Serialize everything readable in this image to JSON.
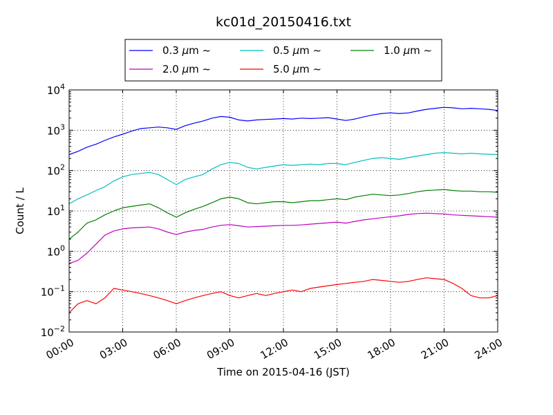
{
  "chart_data": {
    "type": "line",
    "title": "kc01d_20150416.txt",
    "xlabel": "Time on 2015-04-16 (JST)",
    "ylabel": "Count / L",
    "yscale": "log",
    "ylim": [
      0.01,
      10000
    ],
    "xlim": [
      "00:00",
      "24:00"
    ],
    "x_tick_labels": [
      "00:00",
      "03:00",
      "06:00",
      "09:00",
      "12:00",
      "15:00",
      "18:00",
      "21:00",
      "24:00"
    ],
    "y_tick_labels": [
      {
        "base": "10",
        "exp": "-2"
      },
      {
        "base": "10",
        "exp": "-1"
      },
      {
        "base": "10",
        "exp": "0"
      },
      {
        "base": "10",
        "exp": "1"
      },
      {
        "base": "10",
        "exp": "2"
      },
      {
        "base": "10",
        "exp": "3"
      },
      {
        "base": "10",
        "exp": "4"
      }
    ],
    "grid": true,
    "legend_position": "top",
    "x": [
      "00:00",
      "00:30",
      "01:00",
      "01:30",
      "02:00",
      "02:30",
      "03:00",
      "03:30",
      "04:00",
      "04:30",
      "05:00",
      "05:30",
      "06:00",
      "06:30",
      "07:00",
      "07:30",
      "08:00",
      "08:30",
      "09:00",
      "09:30",
      "10:00",
      "10:30",
      "11:00",
      "11:30",
      "12:00",
      "12:30",
      "13:00",
      "13:30",
      "14:00",
      "14:30",
      "15:00",
      "15:30",
      "16:00",
      "16:30",
      "17:00",
      "17:30",
      "18:00",
      "18:30",
      "19:00",
      "19:30",
      "20:00",
      "20:30",
      "21:00",
      "21:30",
      "22:00",
      "22:30",
      "23:00",
      "23:30",
      "24:00"
    ],
    "series": [
      {
        "name": "0.3 μm ~",
        "label_main": "0.3",
        "color": "#0000ff",
        "values": [
          250,
          300,
          380,
          450,
          560,
          680,
          800,
          950,
          1100,
          1150,
          1200,
          1150,
          1050,
          1300,
          1500,
          1700,
          2000,
          2200,
          2100,
          1800,
          1700,
          1800,
          1850,
          1900,
          1950,
          1900,
          2000,
          1950,
          2000,
          2050,
          1900,
          1750,
          1900,
          2150,
          2400,
          2600,
          2700,
          2600,
          2700,
          3000,
          3300,
          3500,
          3700,
          3600,
          3400,
          3500,
          3400,
          3300,
          3100
        ]
      },
      {
        "name": "0.5 μm ~",
        "label_main": "0.5",
        "color": "#00bfbf",
        "values": [
          15,
          20,
          25,
          32,
          40,
          55,
          70,
          80,
          85,
          90,
          80,
          60,
          45,
          60,
          70,
          80,
          110,
          140,
          160,
          150,
          120,
          110,
          120,
          130,
          140,
          135,
          140,
          145,
          140,
          150,
          150,
          140,
          160,
          180,
          200,
          210,
          200,
          190,
          210,
          230,
          250,
          270,
          280,
          270,
          260,
          270,
          260,
          255,
          250
        ]
      },
      {
        "name": "1.0 μm ~",
        "label_main": "1.0",
        "color": "#008000",
        "values": [
          2,
          3,
          5,
          6,
          8,
          10,
          12,
          13,
          14,
          15,
          12,
          9,
          7,
          9,
          11,
          13,
          16,
          20,
          22,
          20,
          16,
          15,
          16,
          17,
          17,
          16,
          17,
          18,
          18,
          19,
          20,
          19,
          22,
          24,
          26,
          25,
          24,
          25,
          27,
          30,
          32,
          33,
          34,
          32,
          31,
          31,
          30,
          30,
          29
        ]
      },
      {
        "name": "2.0 μm ~",
        "label_main": "2.0",
        "color": "#bf00bf",
        "values": [
          0.5,
          0.6,
          0.9,
          1.5,
          2.5,
          3.2,
          3.6,
          3.8,
          3.9,
          4.0,
          3.6,
          3.0,
          2.6,
          3.0,
          3.3,
          3.5,
          4.0,
          4.4,
          4.6,
          4.3,
          4.0,
          4.1,
          4.2,
          4.3,
          4.4,
          4.4,
          4.5,
          4.7,
          4.9,
          5.1,
          5.3,
          5.0,
          5.5,
          6.0,
          6.4,
          6.8,
          7.2,
          7.6,
          8.2,
          8.6,
          8.8,
          8.6,
          8.4,
          8.0,
          7.8,
          7.6,
          7.4,
          7.2,
          7.0
        ]
      },
      {
        "name": "5.0 μm ~",
        "label_main": "5.0",
        "color": "#ff0000",
        "values": [
          0.03,
          0.05,
          0.06,
          0.05,
          0.07,
          0.12,
          0.11,
          0.1,
          0.09,
          0.08,
          0.07,
          0.06,
          0.05,
          0.06,
          0.07,
          0.08,
          0.09,
          0.1,
          0.08,
          0.07,
          0.08,
          0.09,
          0.08,
          0.09,
          0.1,
          0.11,
          0.1,
          0.12,
          0.13,
          0.14,
          0.15,
          0.16,
          0.17,
          0.18,
          0.2,
          0.19,
          0.18,
          0.17,
          0.18,
          0.2,
          0.22,
          0.21,
          0.2,
          0.16,
          0.12,
          0.08,
          0.07,
          0.07,
          0.08
        ]
      }
    ]
  }
}
